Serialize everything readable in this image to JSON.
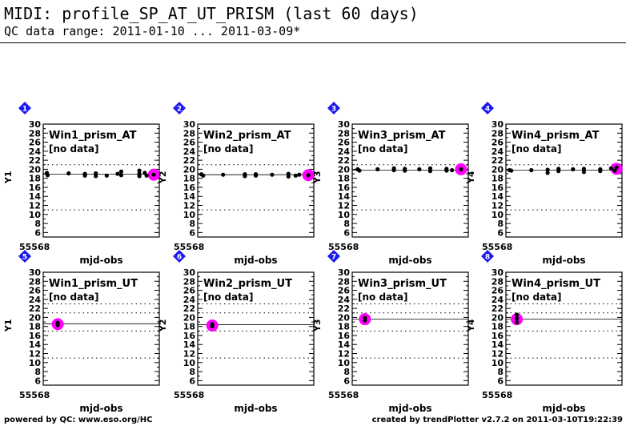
{
  "header": {
    "title": "MIDI: profile_SP_AT_UT_PRISM (last 60 days)",
    "subtitle": "QC data range: 2011-01-10 ... 2011-03-09*"
  },
  "footer": {
    "left": "powered by QC: www.eso.org/HC",
    "right": "created by trendPlotter v2.7.2 on 2011-03-10T19:22:39"
  },
  "colors": {
    "badge": "#1a1aee",
    "highlight": "#ff00ff",
    "points": "#000000"
  },
  "chart_data": [
    {
      "type": "scatter",
      "panel_number": "1",
      "panel_label": "Win1_prism_AT",
      "note": "[no data]",
      "ylabel": "Y1",
      "xlabel": "mjd-obs",
      "x_start_label": "55568",
      "yticks": [
        6,
        8,
        10,
        12,
        14,
        16,
        18,
        20,
        22,
        24,
        26,
        28,
        30
      ],
      "ylim": [
        5,
        30
      ],
      "xlim": [
        55568,
        55632
      ],
      "ref_line": 18.9,
      "dotted_lines": [
        11,
        21
      ],
      "points": [
        [
          55570,
          19.2
        ],
        [
          55570.4,
          18.7
        ],
        [
          55582,
          19.1
        ],
        [
          55591,
          19.0
        ],
        [
          55591,
          18.6
        ],
        [
          55597,
          18.5
        ],
        [
          55597,
          19.1
        ],
        [
          55603,
          18.6
        ],
        [
          55609,
          19.0
        ],
        [
          55611,
          18.7
        ],
        [
          55611,
          19.5
        ],
        [
          55621,
          18.5
        ],
        [
          55621,
          19.0
        ],
        [
          55621,
          19.7
        ],
        [
          55624,
          19.2
        ],
        [
          55625,
          18.6
        ],
        [
          55629,
          18.8
        ]
      ],
      "highlight": [
        55629,
        18.8
      ]
    },
    {
      "type": "scatter",
      "panel_number": "2",
      "panel_label": "Win2_prism_AT",
      "note": "[no data]",
      "ylabel": "Y2",
      "xlabel": "mjd-obs",
      "x_start_label": "55568",
      "yticks": [
        6,
        8,
        10,
        12,
        14,
        16,
        18,
        20,
        22,
        24,
        26,
        28,
        30
      ],
      "ylim": [
        5,
        30
      ],
      "xlim": [
        55568,
        55632
      ],
      "ref_line": 18.8,
      "dotted_lines": [
        11,
        21
      ],
      "points": [
        [
          55570,
          18.9
        ],
        [
          55571,
          18.6
        ],
        [
          55582,
          18.8
        ],
        [
          55594,
          18.5
        ],
        [
          55594,
          18.9
        ],
        [
          55600,
          18.6
        ],
        [
          55600,
          18.9
        ],
        [
          55609,
          18.8
        ],
        [
          55618,
          18.4
        ],
        [
          55618,
          19.0
        ],
        [
          55622,
          18.6
        ],
        [
          55624,
          18.8
        ],
        [
          55629,
          18.7
        ]
      ],
      "highlight": [
        55629,
        18.7
      ]
    },
    {
      "type": "scatter",
      "panel_number": "3",
      "panel_label": "Win3_prism_AT",
      "note": "[no data]",
      "ylabel": "Y3",
      "xlabel": "mjd-obs",
      "x_start_label": "55568",
      "yticks": [
        6,
        8,
        10,
        12,
        14,
        16,
        18,
        20,
        22,
        24,
        26,
        28,
        30
      ],
      "ylim": [
        5,
        30
      ],
      "xlim": [
        55568,
        55632
      ],
      "ref_line": 19.8,
      "dotted_lines": [
        11,
        21
      ],
      "points": [
        [
          55571,
          20.0
        ],
        [
          55572,
          19.7
        ],
        [
          55582,
          20.0
        ],
        [
          55591,
          19.8
        ],
        [
          55591,
          20.2
        ],
        [
          55597,
          19.7
        ],
        [
          55597,
          20.1
        ],
        [
          55605,
          20.0
        ],
        [
          55611,
          19.6
        ],
        [
          55611,
          20.2
        ],
        [
          55620,
          19.7
        ],
        [
          55620,
          20.1
        ],
        [
          55623,
          19.8
        ],
        [
          55628,
          20.0
        ]
      ],
      "highlight": [
        55628,
        20.0
      ]
    },
    {
      "type": "scatter",
      "panel_number": "4",
      "panel_label": "Win4_prism_AT",
      "note": "[no data]",
      "ylabel": "Y4",
      "xlabel": "mjd-obs",
      "x_start_label": "55568",
      "yticks": [
        6,
        8,
        10,
        12,
        14,
        16,
        18,
        20,
        22,
        24,
        26,
        28,
        30
      ],
      "ylim": [
        5,
        30
      ],
      "xlim": [
        55568,
        55632
      ],
      "ref_line": 19.8,
      "dotted_lines": [
        11,
        21
      ],
      "points": [
        [
          55570,
          19.8
        ],
        [
          55571,
          19.7
        ],
        [
          55582,
          19.8
        ],
        [
          55591,
          19.2
        ],
        [
          55591,
          19.9
        ],
        [
          55597,
          19.6
        ],
        [
          55597,
          20.1
        ],
        [
          55605,
          20.0
        ],
        [
          55611,
          19.4
        ],
        [
          55611,
          20.1
        ],
        [
          55620,
          19.6
        ],
        [
          55620,
          20.0
        ],
        [
          55626,
          20.2
        ],
        [
          55628,
          19.7
        ],
        [
          55629,
          20.4
        ]
      ],
      "highlight": [
        55629,
        20.1
      ]
    },
    {
      "type": "scatter",
      "panel_number": "5",
      "panel_label": "Win1_prism_UT",
      "note": "[no data]",
      "ylabel": "Y1",
      "xlabel": "mjd-obs",
      "x_start_label": "55568",
      "yticks": [
        6,
        8,
        10,
        12,
        14,
        16,
        18,
        20,
        22,
        24,
        26,
        28,
        30
      ],
      "ylim": [
        5,
        30
      ],
      "xlim": [
        55568,
        55632
      ],
      "ref_line": 18.6,
      "dotted_lines": [
        11,
        17,
        21,
        23
      ],
      "points": [
        [
          55576,
          18.3
        ],
        [
          55576,
          18.8
        ]
      ],
      "highlight": [
        55576,
        18.5
      ]
    },
    {
      "type": "scatter",
      "panel_number": "6",
      "panel_label": "Win2_prism_UT",
      "note": "[no data]",
      "ylabel": "Y2",
      "xlabel": "mjd-obs",
      "x_start_label": "55568",
      "yticks": [
        6,
        8,
        10,
        12,
        14,
        16,
        18,
        20,
        22,
        24,
        26,
        28,
        30
      ],
      "ylim": [
        5,
        30
      ],
      "xlim": [
        55568,
        55632
      ],
      "ref_line": 18.4,
      "dotted_lines": [
        11,
        17,
        21,
        23
      ],
      "points": [
        [
          55576,
          18.0
        ],
        [
          55576,
          18.5
        ]
      ],
      "highlight": [
        55576,
        18.2
      ]
    },
    {
      "type": "scatter",
      "panel_number": "7",
      "panel_label": "Win3_prism_UT",
      "note": "[no data]",
      "ylabel": "Y3",
      "xlabel": "mjd-obs",
      "x_start_label": "55568",
      "yticks": [
        6,
        8,
        10,
        12,
        14,
        16,
        18,
        20,
        22,
        24,
        26,
        28,
        30
      ],
      "ylim": [
        5,
        30
      ],
      "xlim": [
        55568,
        55632
      ],
      "ref_line": 19.6,
      "dotted_lines": [
        11,
        17,
        21,
        23
      ],
      "points": [
        [
          55575,
          19.3
        ],
        [
          55575,
          19.9
        ]
      ],
      "highlight": [
        55575,
        19.6
      ]
    },
    {
      "type": "scatter",
      "panel_number": "8",
      "panel_label": "Win4_prism_UT",
      "note": "[no data]",
      "ylabel": "Y4",
      "xlabel": "mjd-obs",
      "x_start_label": "55568",
      "yticks": [
        6,
        8,
        10,
        12,
        14,
        16,
        18,
        20,
        22,
        24,
        26,
        28,
        30
      ],
      "ylim": [
        5,
        30
      ],
      "xlim": [
        55568,
        55632
      ],
      "ref_line": 19.6,
      "dotted_lines": [
        11,
        17,
        21,
        23
      ],
      "points": [
        [
          55574,
          18.9
        ],
        [
          55574,
          19.8
        ],
        [
          55574,
          20.6
        ]
      ],
      "highlight": [
        55574,
        19.6
      ]
    }
  ]
}
